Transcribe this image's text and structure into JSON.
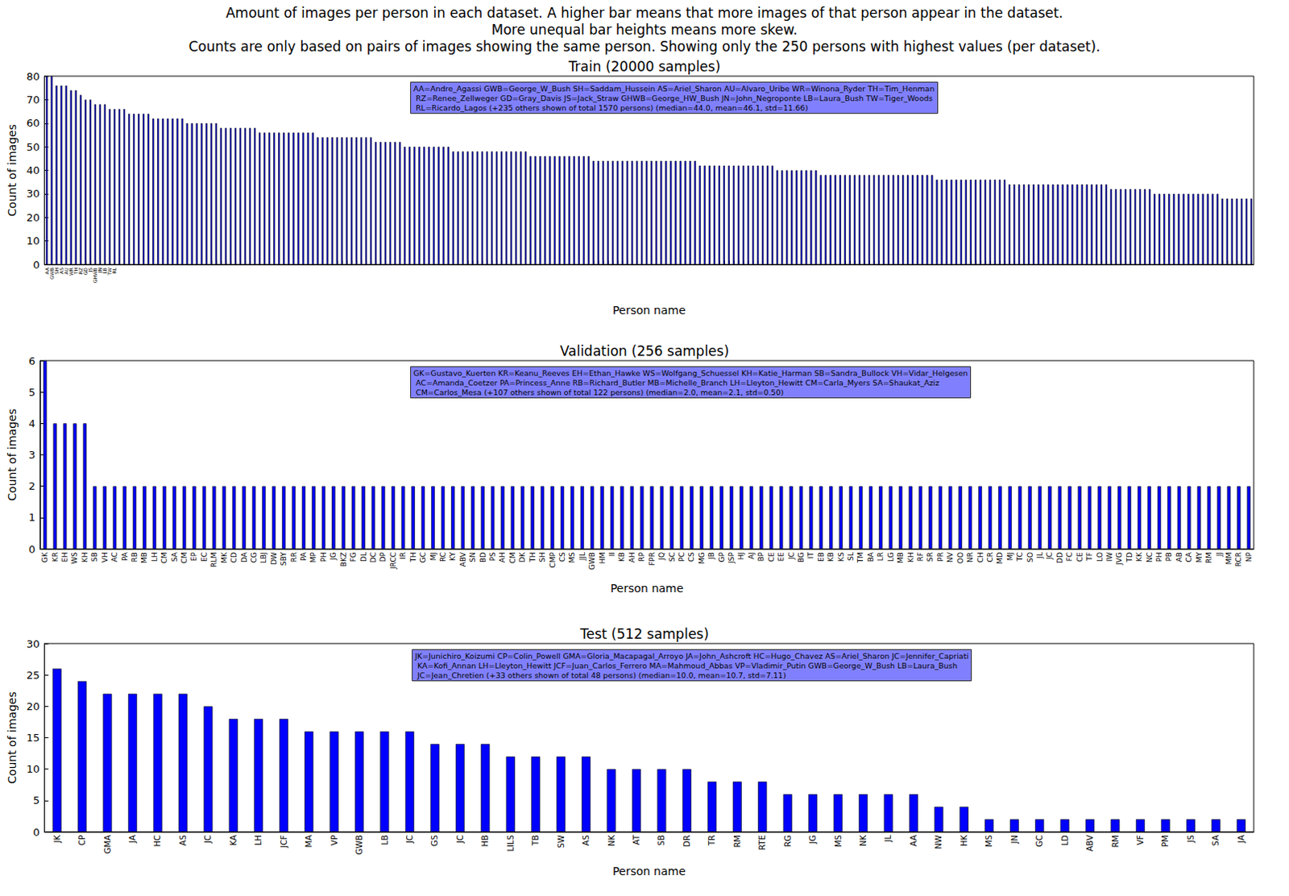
{
  "suptitle": [
    "Amount of images per person in each dataset. A higher bar means that more images of that person appear in the dataset.",
    "More unequal bar heights means more skew.",
    "Counts are only based on pairs of images showing the same person. Showing only the 250 persons with highest values (per dataset)."
  ],
  "chart_data": [
    {
      "type": "bar",
      "title": "Train (20000 samples)",
      "x_label": "Person name",
      "y_label": "Count of images",
      "color": "#0000ff",
      "grid": false,
      "annotation": [
        "AA=Andre_Agassi GWB=George_W_Bush SH=Saddam_Hussein AS=Ariel_Sharon AU=Alvaro_Uribe WR=Winona_Ryder TH=Tim_Henman",
        " RZ=Renee_Zellweger GD=Gray_Davis JS=Jack_Straw GHWB=George_HW_Bush JN=John_Negroponte LB=Laura_Bush TW=Tiger_Woods",
        " RL=Ricardo_Lagos (+235 others shown of total 1570 persons) (median=44.0, mean=46.1, std=11.66)"
      ],
      "ylim": [
        0,
        80
      ],
      "yticks": [
        0,
        10,
        20,
        30,
        40,
        50,
        60,
        70,
        80
      ],
      "categories": [
        "AA",
        "GWB",
        "SH",
        "AS",
        "AU",
        "WR",
        "TH",
        "RZ",
        "GD",
        "JS",
        "GHWB",
        "JN",
        "LB",
        "TW",
        "RL",
        null,
        null,
        null,
        null,
        null,
        null,
        null,
        null,
        null,
        null,
        null,
        null,
        null,
        null,
        null,
        null,
        null,
        null,
        null,
        null,
        null,
        null,
        null,
        null,
        null,
        null,
        null,
        null,
        null,
        null,
        null,
        null,
        null,
        null,
        null,
        null,
        null,
        null,
        null,
        null,
        null,
        null,
        null,
        null,
        null,
        null,
        null,
        null,
        null,
        null,
        null,
        null,
        null,
        null,
        null,
        null,
        null,
        null,
        null,
        null,
        null,
        null,
        null,
        null,
        null,
        null,
        null,
        null,
        null,
        null,
        null,
        null,
        null,
        null,
        null,
        null,
        null,
        null,
        null,
        null,
        null,
        null,
        null,
        null,
        null,
        null,
        null,
        null,
        null,
        null,
        null,
        null,
        null,
        null,
        null,
        null,
        null,
        null,
        null,
        null,
        null,
        null,
        null,
        null,
        null,
        null,
        null,
        null,
        null,
        null,
        null,
        null,
        null,
        null,
        null,
        null,
        null,
        null,
        null,
        null,
        null,
        null,
        null,
        null,
        null,
        null,
        null,
        null,
        null,
        null,
        null,
        null,
        null,
        null,
        null,
        null,
        null,
        null,
        null,
        null,
        null,
        null,
        null,
        null,
        null,
        null,
        null,
        null,
        null,
        null,
        null,
        null,
        null,
        null,
        null,
        null,
        null,
        null,
        null,
        null,
        null,
        null,
        null,
        null,
        null,
        null,
        null,
        null,
        null,
        null,
        null,
        null,
        null,
        null,
        null,
        null,
        null,
        null,
        null,
        null,
        null,
        null,
        null,
        null,
        null,
        null,
        null,
        null,
        null,
        null,
        null,
        null,
        null,
        null,
        null,
        null,
        null,
        null,
        null,
        null,
        null,
        null,
        null,
        null,
        null,
        null,
        null,
        null,
        null,
        null,
        null,
        null,
        null,
        null,
        null,
        null,
        null,
        null,
        null,
        null,
        null,
        null,
        null,
        null,
        null,
        null,
        null,
        null,
        null,
        null,
        null,
        null,
        null,
        null,
        null
      ],
      "values": [
        80,
        80,
        76,
        76,
        76,
        74,
        74,
        72,
        70,
        70,
        68,
        68,
        68,
        66,
        66,
        66,
        66,
        64,
        64,
        64,
        64,
        64,
        62,
        62,
        62,
        62,
        62,
        62,
        62,
        60,
        60,
        60,
        60,
        60,
        60,
        60,
        58,
        58,
        58,
        58,
        58,
        58,
        58,
        58,
        56,
        56,
        56,
        56,
        56,
        56,
        56,
        56,
        56,
        56,
        56,
        56,
        54,
        54,
        54,
        54,
        54,
        54,
        54,
        54,
        54,
        54,
        54,
        54,
        52,
        52,
        52,
        52,
        52,
        52,
        50,
        50,
        50,
        50,
        50,
        50,
        50,
        50,
        50,
        50,
        48,
        48,
        48,
        48,
        48,
        48,
        48,
        48,
        48,
        48,
        48,
        48,
        48,
        48,
        48,
        48,
        46,
        46,
        46,
        46,
        46,
        46,
        46,
        46,
        46,
        46,
        46,
        46,
        46,
        44,
        44,
        44,
        44,
        44,
        44,
        44,
        44,
        44,
        44,
        44,
        44,
        44,
        44,
        44,
        44,
        44,
        44,
        44,
        44,
        44,
        44,
        42,
        42,
        42,
        42,
        42,
        42,
        42,
        42,
        42,
        42,
        42,
        42,
        42,
        42,
        42,
        42,
        40,
        40,
        40,
        40,
        40,
        40,
        40,
        40,
        40,
        38,
        38,
        38,
        38,
        38,
        38,
        38,
        38,
        38,
        38,
        38,
        38,
        38,
        38,
        38,
        38,
        38,
        38,
        38,
        38,
        38,
        38,
        38,
        38,
        36,
        36,
        36,
        36,
        36,
        36,
        36,
        36,
        36,
        36,
        36,
        36,
        36,
        36,
        36,
        34,
        34,
        34,
        34,
        34,
        34,
        34,
        34,
        34,
        34,
        34,
        34,
        34,
        34,
        34,
        34,
        34,
        34,
        34,
        34,
        34,
        32,
        32,
        32,
        32,
        32,
        32,
        32,
        32,
        32,
        30,
        30,
        30,
        30,
        30,
        30,
        30,
        30,
        30,
        30,
        30,
        30,
        30,
        30,
        28,
        28,
        28,
        28,
        28,
        28,
        28
      ]
    },
    {
      "type": "bar",
      "title": "Validation (256 samples)",
      "x_label": "Person name",
      "y_label": "Count of images",
      "color": "#0000ff",
      "grid": false,
      "annotation": [
        "GK=Gustavo_Kuerten KR=Keanu_Reeves EH=Ethan_Hawke WS=Wolfgang_Schuessel KH=Katie_Harman SB=Sandra_Bullock VH=Vidar_Helgesen",
        " AC=Amanda_Coetzer PA=Princess_Anne RB=Richard_Butler MB=Michelle_Branch LH=Lleyton_Hewitt CM=Carla_Myers SA=Shaukat_Aziz",
        " CM=Carlos_Mesa (+107 others shown of total 122 persons) (median=2.0, mean=2.1, std=0.50)"
      ],
      "ylim": [
        0,
        6
      ],
      "yticks": [
        0,
        1,
        2,
        3,
        4,
        5,
        6
      ],
      "categories": [
        "GK",
        "KR",
        "EH",
        "WS",
        "KH",
        "SB",
        "VH",
        "AC",
        "PA",
        "RB",
        "MB",
        "LH",
        "CM",
        "SA",
        "CM",
        "EP",
        "EC",
        "RLM",
        "MK",
        "CD",
        "DA",
        "CG",
        "LBJ",
        "DW",
        "SBY",
        "RR",
        "PA",
        "MP",
        "PH",
        "JG",
        "BKZ",
        "FG",
        "DL",
        "DC",
        "DP",
        "JRCC",
        "IR",
        "TH",
        "GC",
        "MJ",
        "RC",
        "KY",
        "ABV",
        "SN",
        "BD",
        "PS",
        "AH",
        "CM",
        "DK",
        "TH",
        "SH",
        "CMP",
        "CS",
        "MS",
        "JJL",
        "GWB",
        "HM",
        "II",
        "KB",
        "AH",
        "RP",
        "FPR",
        "JQ",
        "SC",
        "PC",
        "CS",
        "MG",
        "JB",
        "GP",
        "JSP",
        "HJ",
        "AJ",
        "BP",
        "CE",
        "EE",
        "JC",
        "BG",
        "IT",
        "EB",
        "KB",
        "KS",
        "SL",
        "TM",
        "BA",
        "LR",
        "LG",
        "MB",
        "KH",
        "RF",
        "SR",
        "PR",
        "NV",
        "OO",
        "NR",
        "CH",
        "CR",
        "MD",
        "MJ",
        "TC",
        "SO",
        "JL",
        "JC",
        "DD",
        "FC",
        "CE",
        "TF",
        "LO",
        "IW",
        "JVG",
        "TD",
        "KK",
        "NC",
        "PH",
        "PB",
        "AB",
        "CA",
        "MY",
        "RM",
        "JJ",
        "MM",
        "RCR",
        "NP"
      ],
      "values": [
        6,
        4,
        4,
        4,
        4,
        2,
        2,
        2,
        2,
        2,
        2,
        2,
        2,
        2,
        2,
        2,
        2,
        2,
        2,
        2,
        2,
        2,
        2,
        2,
        2,
        2,
        2,
        2,
        2,
        2,
        2,
        2,
        2,
        2,
        2,
        2,
        2,
        2,
        2,
        2,
        2,
        2,
        2,
        2,
        2,
        2,
        2,
        2,
        2,
        2,
        2,
        2,
        2,
        2,
        2,
        2,
        2,
        2,
        2,
        2,
        2,
        2,
        2,
        2,
        2,
        2,
        2,
        2,
        2,
        2,
        2,
        2,
        2,
        2,
        2,
        2,
        2,
        2,
        2,
        2,
        2,
        2,
        2,
        2,
        2,
        2,
        2,
        2,
        2,
        2,
        2,
        2,
        2,
        2,
        2,
        2,
        2,
        2,
        2,
        2,
        2,
        2,
        2,
        2,
        2,
        2,
        2,
        2,
        2,
        2,
        2,
        2,
        2,
        2,
        2,
        2,
        2,
        2,
        2,
        2,
        2,
        2
      ]
    },
    {
      "type": "bar",
      "title": "Test (512 samples)",
      "x_label": "Person name",
      "y_label": "Count of images",
      "color": "#0000ff",
      "grid": false,
      "annotation": [
        "JK=Junichiro_Koizumi CP=Colin_Powell GMA=Gloria_Macapagal_Arroyo JA=John_Ashcroft HC=Hugo_Chavez AS=Ariel_Sharon JC=Jennifer_Capriati",
        " KA=Kofi_Annan LH=Lleyton_Hewitt JCF=Juan_Carlos_Ferrero MA=Mahmoud_Abbas VP=Vladimir_Putin GWB=George_W_Bush LB=Laura_Bush",
        " JC=Jean_Chretien (+33 others shown of total 48 persons) (median=10.0, mean=10.7, std=7.11)"
      ],
      "ylim": [
        0,
        30
      ],
      "yticks": [
        0,
        5,
        10,
        15,
        20,
        25,
        30
      ],
      "categories": [
        "JK",
        "CP",
        "GMA",
        "JA",
        "HC",
        "AS",
        "JC",
        "KA",
        "LH",
        "JCF",
        "MA",
        "VP",
        "GWB",
        "LB",
        "JC",
        "GS",
        "JC",
        "HB",
        "LILS",
        "TB",
        "SW",
        "AS",
        "NK",
        "AT",
        "SB",
        "DR",
        "TR",
        "RM",
        "RTE",
        "RG",
        "JG",
        "MS",
        "NK",
        "JL",
        "AA",
        "NW",
        "HK",
        "MS",
        "JN",
        "GC",
        "LD",
        "ABV",
        "RM",
        "VF",
        "PM",
        "JS",
        "SA",
        "JA"
      ],
      "values": [
        26,
        24,
        22,
        22,
        22,
        22,
        20,
        18,
        18,
        18,
        16,
        16,
        16,
        16,
        16,
        14,
        14,
        14,
        12,
        12,
        12,
        12,
        10,
        10,
        10,
        10,
        8,
        8,
        8,
        6,
        6,
        6,
        6,
        6,
        6,
        4,
        4,
        2,
        2,
        2,
        2,
        2,
        2,
        2,
        2,
        2,
        2,
        2
      ]
    }
  ]
}
